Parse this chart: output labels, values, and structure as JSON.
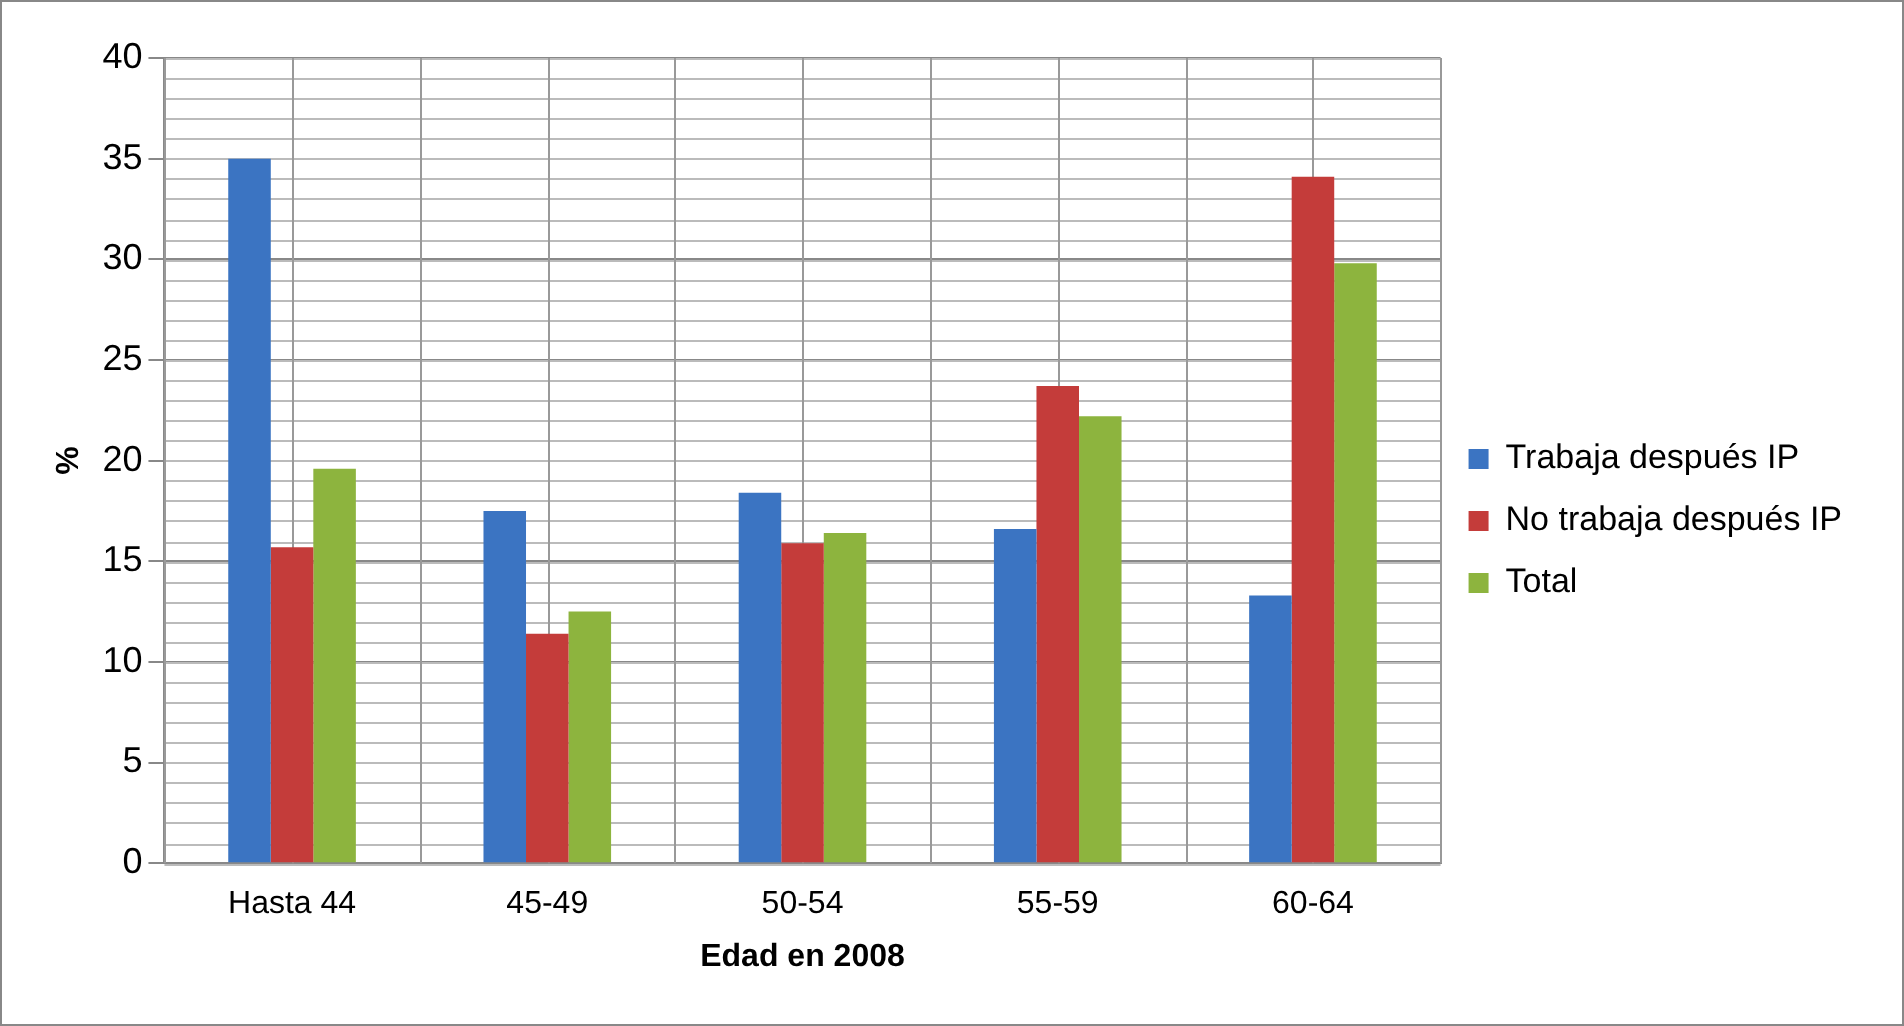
{
  "chart_data": {
    "type": "bar",
    "xlabel": "Edad en 2008",
    "ylabel": "%",
    "categories": [
      "Hasta 44",
      "45-49",
      "50-54",
      "55-59",
      "60-64"
    ],
    "series": [
      {
        "name": "Trabaja después IP",
        "color": "#3b74c2",
        "values": [
          35,
          17.5,
          18.4,
          16.6,
          13.3
        ]
      },
      {
        "name": "No trabaja después IP",
        "color": "#c43c3a",
        "values": [
          15.7,
          11.4,
          15.9,
          23.7,
          34.1
        ]
      },
      {
        "name": "Total",
        "color": "#8db43e",
        "values": [
          19.6,
          12.5,
          16.4,
          22.2,
          29.8
        ]
      }
    ],
    "ylim": [
      0,
      40
    ],
    "yticks": [
      0,
      5,
      10,
      15,
      20,
      25,
      30,
      35,
      40
    ],
    "grid": true,
    "legend": "right"
  }
}
